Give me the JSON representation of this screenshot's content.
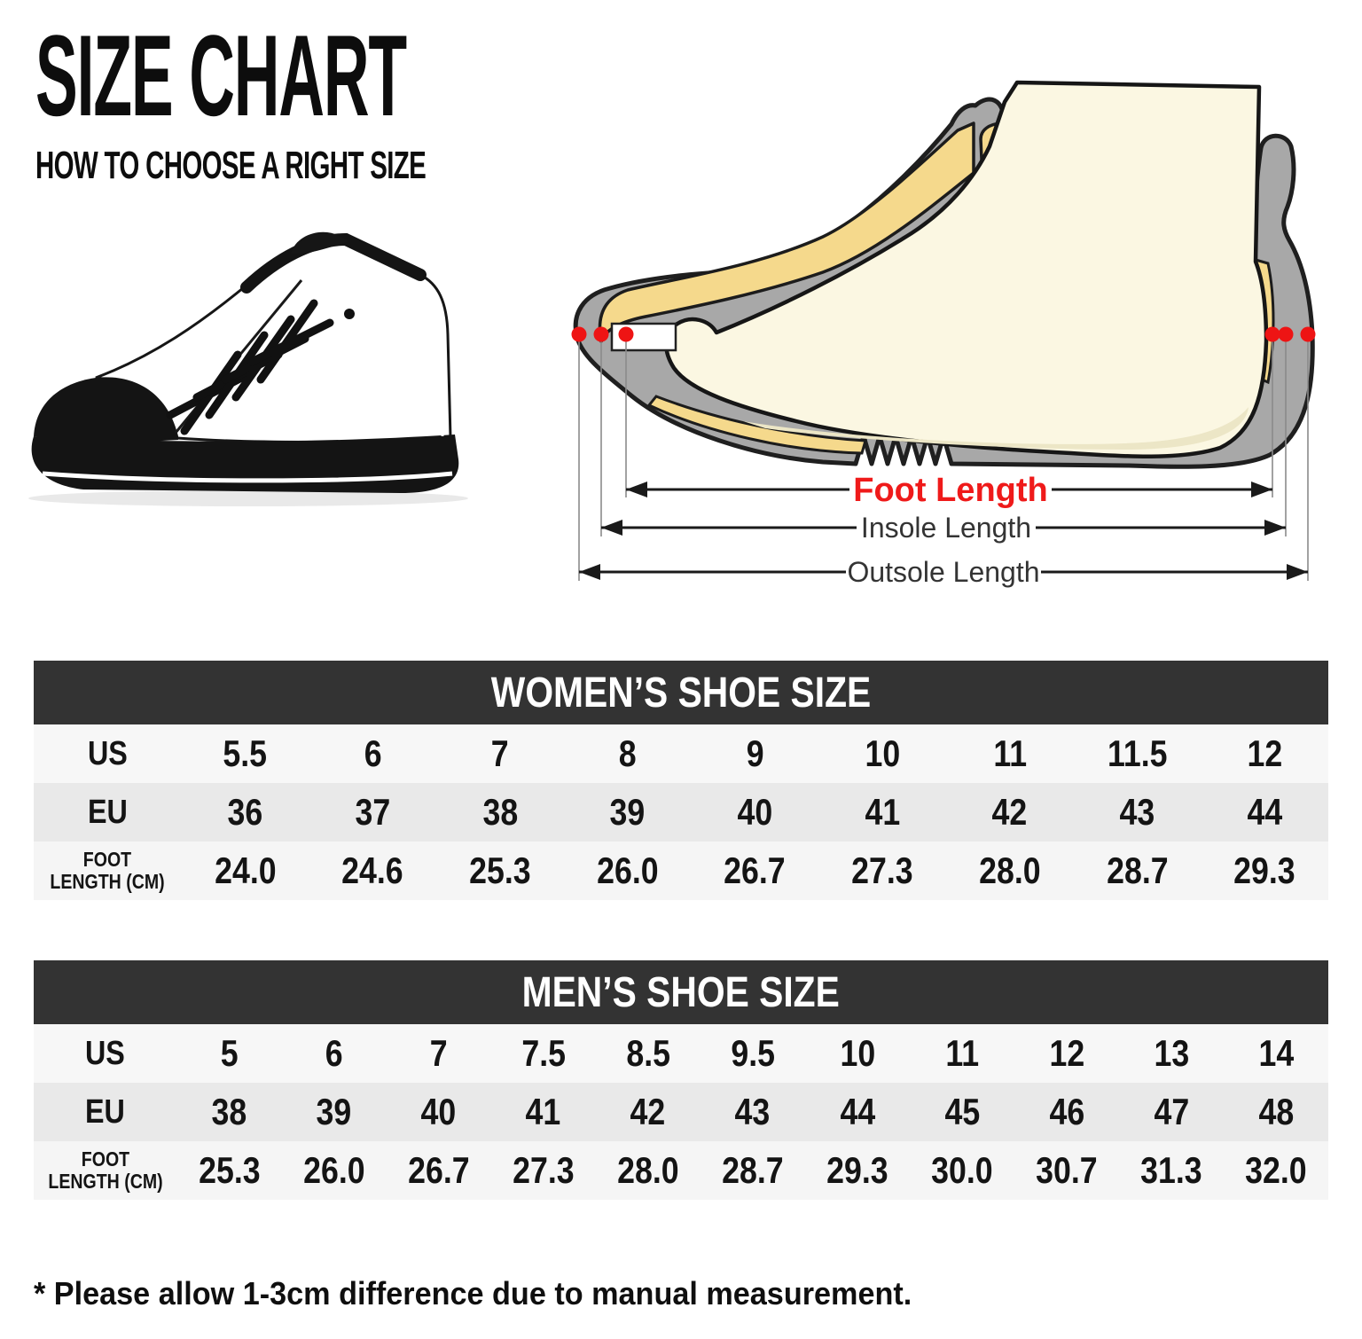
{
  "page": {
    "title": "SIZE CHART",
    "subtitle": "HOW TO CHOOSE A RIGHT SIZE",
    "footnote": "* Please allow 1-3cm difference due to manual measurement."
  },
  "diagram": {
    "labels": {
      "foot_length": "Foot Length",
      "insole_length": "Insole Length",
      "outsole_length": "Outsole Length"
    },
    "colors": {
      "foot_length_text": "#ef1a1a",
      "marker_dot": "#ee1414",
      "shoe_gray": "#a8a8a8",
      "insole_yellow": "#f5d98c",
      "foot_cream": "#fbf7e2",
      "outline": "#1f1f1f",
      "secondary_label_text": "#343434"
    }
  },
  "sneaker": {
    "colors": {
      "upper": "#ffffff",
      "sole_toe_laces": "#141414",
      "stripe": "#ffffff"
    }
  },
  "tables": [
    {
      "id": "women",
      "title": "WOMEN’S SHOE SIZE",
      "header_bg": "#333333",
      "header_text_color": "#ffffff",
      "rows": [
        {
          "key": "us",
          "label": "US",
          "values": [
            "5.5",
            "6",
            "7",
            "8",
            "9",
            "10",
            "11",
            "11.5",
            "12"
          ]
        },
        {
          "key": "eu",
          "label": "EU",
          "values": [
            "36",
            "37",
            "38",
            "39",
            "40",
            "41",
            "42",
            "43",
            "44"
          ]
        },
        {
          "key": "foot_length_cm",
          "label": "FOOT LENGTH (CM)",
          "label_lines": [
            "FOOT",
            "LENGTH (CM)"
          ],
          "values": [
            "24.0",
            "24.6",
            "25.3",
            "26.0",
            "26.7",
            "27.3",
            "28.0",
            "28.7",
            "29.3"
          ]
        }
      ]
    },
    {
      "id": "men",
      "title": "MEN’S SHOE SIZE",
      "header_bg": "#333333",
      "header_text_color": "#ffffff",
      "rows": [
        {
          "key": "us",
          "label": "US",
          "values": [
            "5",
            "6",
            "7",
            "7.5",
            "8.5",
            "9.5",
            "10",
            "11",
            "12",
            "13",
            "14"
          ]
        },
        {
          "key": "eu",
          "label": "EU",
          "values": [
            "38",
            "39",
            "40",
            "41",
            "42",
            "43",
            "44",
            "45",
            "46",
            "47",
            "48"
          ]
        },
        {
          "key": "foot_length_cm",
          "label": "FOOT LENGTH (CM)",
          "label_lines": [
            "FOOT",
            "LENGTH (CM)"
          ],
          "values": [
            "25.3",
            "26.0",
            "26.7",
            "27.3",
            "28.0",
            "28.7",
            "29.3",
            "30.0",
            "30.7",
            "31.3",
            "32.0"
          ]
        }
      ]
    }
  ]
}
